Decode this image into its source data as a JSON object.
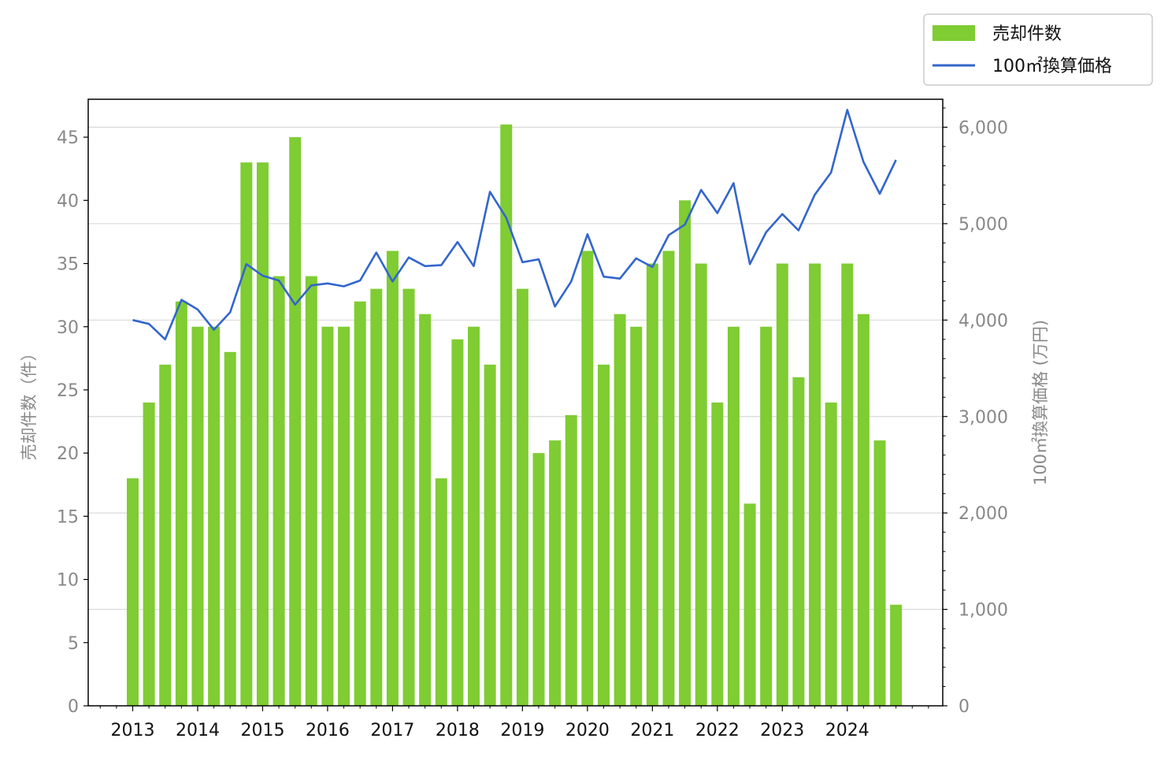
{
  "chart_data": {
    "type": "bar",
    "title": "",
    "xlabel": "",
    "x_tick_labels": [
      "2013",
      "2014",
      "2015",
      "2016",
      "2017",
      "2018",
      "2019",
      "2020",
      "2021",
      "2022",
      "2023",
      "2024"
    ],
    "ylabel_left": "売却件数（件）",
    "ylabel_right": "100㎡換算価格 (万円)",
    "ylim_left": [
      0,
      48
    ],
    "ylim_right": [
      0,
      6290
    ],
    "left_ticks": [
      "0",
      "5",
      "10",
      "15",
      "20",
      "25",
      "30",
      "35",
      "40",
      "45"
    ],
    "right_ticks": [
      "0",
      "1,000",
      "2,000",
      "3,000",
      "4,000",
      "5,000",
      "6,000"
    ],
    "grid": "horizontal (right axis)",
    "legend_position": "top-right",
    "colors": {
      "bar": "#7fcc33",
      "line": "#3366cc"
    },
    "series": [
      {
        "name": "売却件数",
        "type": "bar",
        "axis": "left",
        "values": [
          18,
          24,
          27,
          32,
          30,
          30,
          28,
          43,
          43,
          34,
          45,
          34,
          30,
          30,
          32,
          33,
          36,
          33,
          31,
          18,
          29,
          30,
          27,
          46,
          33,
          20,
          21,
          23,
          36,
          27,
          31,
          30,
          35,
          36,
          40,
          35,
          24,
          30,
          16,
          30,
          35,
          26,
          35,
          24,
          35,
          31,
          21,
          8
        ]
      },
      {
        "name": "100㎡換算価格",
        "type": "line",
        "axis": "right",
        "values": [
          4000,
          3960,
          3800,
          4210,
          4110,
          3900,
          4080,
          4580,
          4460,
          4410,
          4160,
          4360,
          4380,
          4350,
          4410,
          4700,
          4400,
          4650,
          4560,
          4570,
          4810,
          4560,
          5330,
          5060,
          4600,
          4630,
          4140,
          4400,
          4890,
          4450,
          4430,
          4640,
          4550,
          4880,
          4990,
          5350,
          5110,
          5420,
          4580,
          4910,
          5100,
          4930,
          5300,
          5530,
          6180,
          5640,
          5310,
          5660
        ]
      }
    ]
  }
}
